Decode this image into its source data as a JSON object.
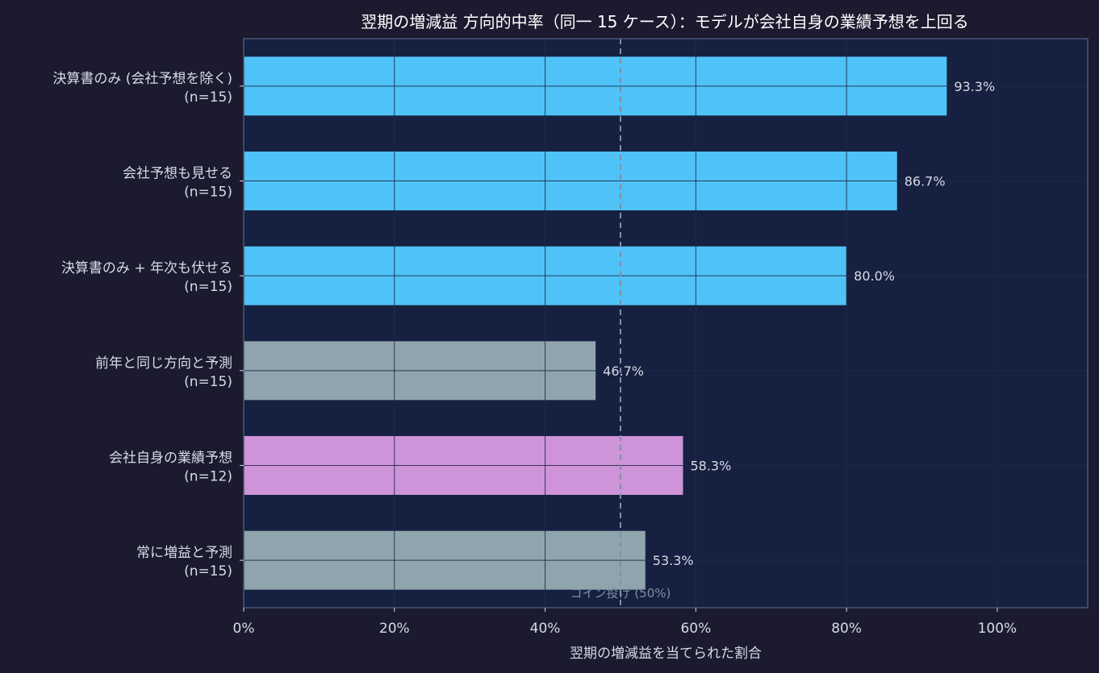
{
  "chart_data": {
    "type": "bar",
    "orientation": "horizontal",
    "title": "翌期の増減益 方向的中率（同一 15 ケース）：モデルが会社自身の業績予想を上回る",
    "xlabel": "翌期の増減益を当てられた割合",
    "ylabel": "",
    "xlim": [
      0,
      112
    ],
    "x_tick_labels": [
      "0%",
      "20%",
      "40%",
      "60%",
      "80%",
      "100%"
    ],
    "x_ticks": [
      0,
      20,
      40,
      60,
      80,
      100
    ],
    "grid": true,
    "categories": [
      "決算書のみ (会社予想を除く)",
      "会社予想も見せる",
      "決算書のみ + 年次も伏せる",
      "前年と同じ方向と予測",
      "会社自身の業績予想",
      "常に増益と予測"
    ],
    "category_n": [
      "(n=15)",
      "(n=15)",
      "(n=15)",
      "(n=15)",
      "(n=12)",
      "(n=15)"
    ],
    "values": [
      93.3,
      86.7,
      80.0,
      46.7,
      58.3,
      53.3
    ],
    "value_labels": [
      "93.3%",
      "86.7%",
      "80.0%",
      "46.7%",
      "58.3%",
      "53.3%"
    ],
    "bar_colors": [
      "#4fc3f7",
      "#4fc3f7",
      "#4fc3f7",
      "#90a4ae",
      "#ce93d8",
      "#90a4ae"
    ],
    "reference_line": {
      "value": 50,
      "label": "コイン投げ (50%)",
      "color": "#7f8fa6"
    },
    "colors": {
      "background": "#1b1a2e",
      "plot_background": "#162040",
      "text": "#d7dbe6",
      "title": "#ffffff",
      "spine": "#4a5577"
    }
  }
}
